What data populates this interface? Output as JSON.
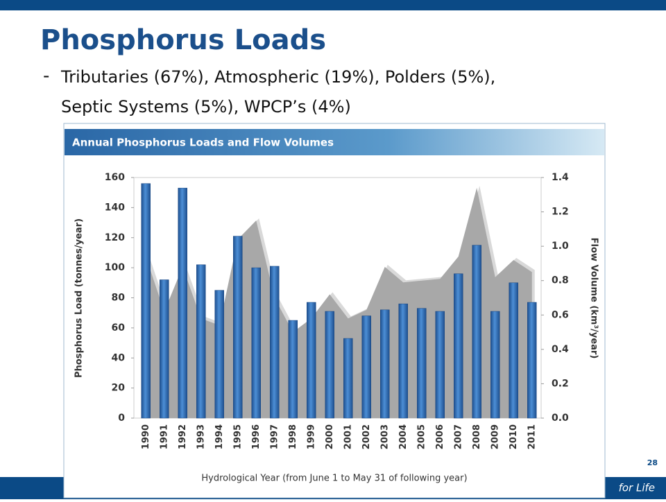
{
  "slide_title": "Phosphorus Loads",
  "bullet": {
    "marker": "-",
    "lines": [
      "Tributaries (67%), Atmospheric (19%), Polders (5%),",
      "Septic Systems (5%), WPCP’s (4%)"
    ]
  },
  "page_number": "28",
  "footer": "for Life",
  "chart_data": {
    "type": "bar",
    "title": "Annual Phosphorus Loads and Flow Volumes",
    "x_label": "Hydrological Year (from June 1 to May 31 of following year)",
    "y_label": "Phosphorus Load (tonnes/year)",
    "y2_label": "Flow Volume (km³/year)",
    "categories": [
      "1990",
      "1991",
      "1992",
      "1993",
      "1994",
      "1995",
      "1996",
      "1997",
      "1998",
      "1999",
      "2000",
      "2001",
      "2002",
      "2003",
      "2004",
      "2005",
      "2006",
      "2007",
      "2008",
      "2009",
      "2010",
      "2011"
    ],
    "series": [
      {
        "type": "bar",
        "color": "#2f6fb7",
        "values": [
          156,
          92,
          153,
          102,
          85,
          121,
          100,
          101,
          65,
          77,
          71,
          53,
          68,
          72,
          76,
          73,
          71,
          96,
          115,
          71,
          90,
          77
        ]
      },
      {
        "type": "area",
        "axis": "y2",
        "color": "#a8a8a8",
        "values": [
          0.94,
          0.62,
          0.88,
          0.58,
          0.54,
          1.04,
          1.15,
          0.7,
          0.5,
          0.58,
          0.72,
          0.58,
          0.63,
          0.88,
          0.79,
          0.8,
          0.81,
          0.94,
          1.34,
          0.82,
          0.92,
          0.85
        ]
      }
    ],
    "ylim": [
      0,
      160
    ],
    "yticks": [
      0,
      20,
      40,
      60,
      80,
      100,
      120,
      140,
      160
    ],
    "y2lim": [
      0,
      1.4
    ],
    "y2ticks": [
      {
        "value": 0,
        "label": "0.0"
      },
      0.2,
      0.4,
      0.6,
      0.8,
      {
        "value": 1,
        "label": "1.0"
      },
      1.2,
      1.4
    ]
  }
}
